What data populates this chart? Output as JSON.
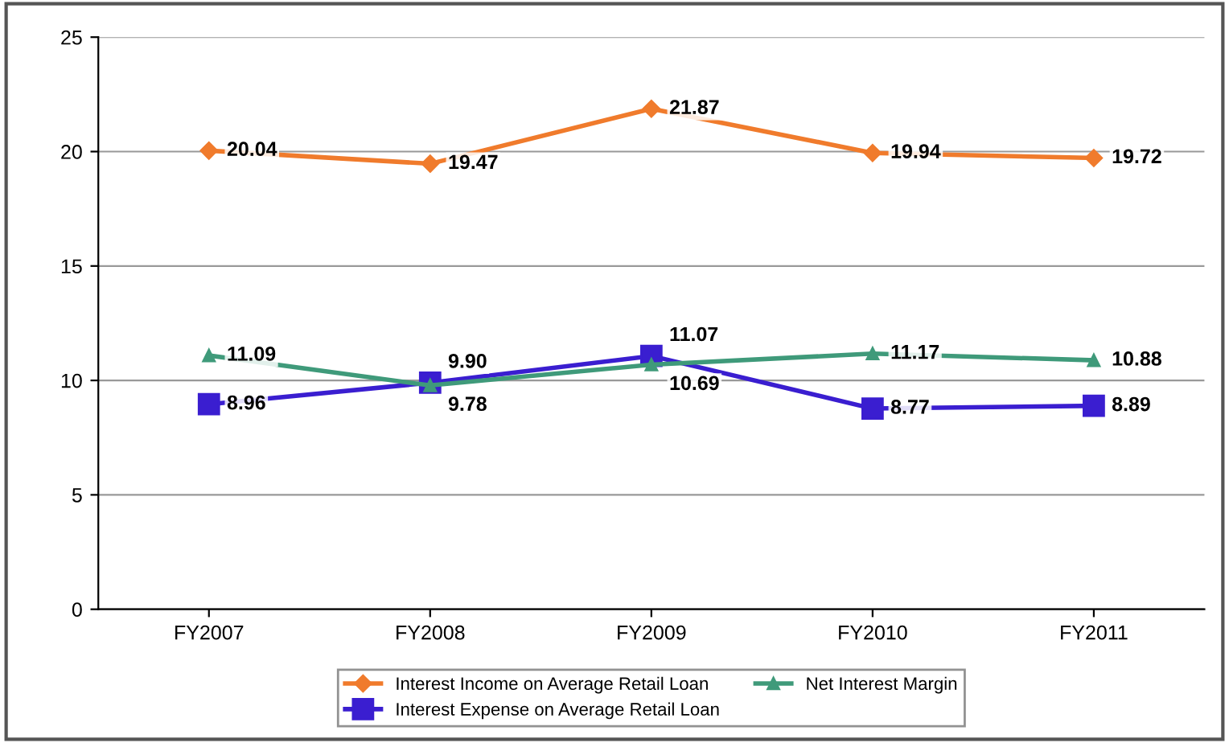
{
  "chart_data": {
    "type": "line",
    "categories": [
      "FY2007",
      "FY2008",
      "FY2009",
      "FY2010",
      "FY2011"
    ],
    "series": [
      {
        "name": "Interest Income on Average Retail Loan",
        "color": "#f07b2c",
        "marker": "diamond",
        "values": [
          20.04,
          19.47,
          21.87,
          19.94,
          19.72
        ],
        "value_labels": [
          "20.04",
          "19.47",
          "21.87",
          "19.94",
          "19.72"
        ]
      },
      {
        "name": "Interest Expense on Average Retail Loan",
        "color": "#3a1ed0",
        "marker": "square",
        "values": [
          8.96,
          9.9,
          11.07,
          8.77,
          8.89
        ],
        "value_labels": [
          "8.96",
          "9.90",
          "11.07",
          "8.77",
          "8.89"
        ]
      },
      {
        "name": "Net Interest Margin",
        "color": "#3f9a7a",
        "marker": "triangle",
        "values": [
          11.09,
          9.78,
          10.69,
          11.17,
          10.88
        ],
        "value_labels": [
          "11.09",
          "9.78",
          "10.69",
          "11.17",
          "10.88"
        ]
      }
    ],
    "ylim": [
      0,
      25
    ],
    "yticks": [
      0,
      5,
      10,
      15,
      20,
      25
    ],
    "grid": "y",
    "legend": "bottom"
  }
}
